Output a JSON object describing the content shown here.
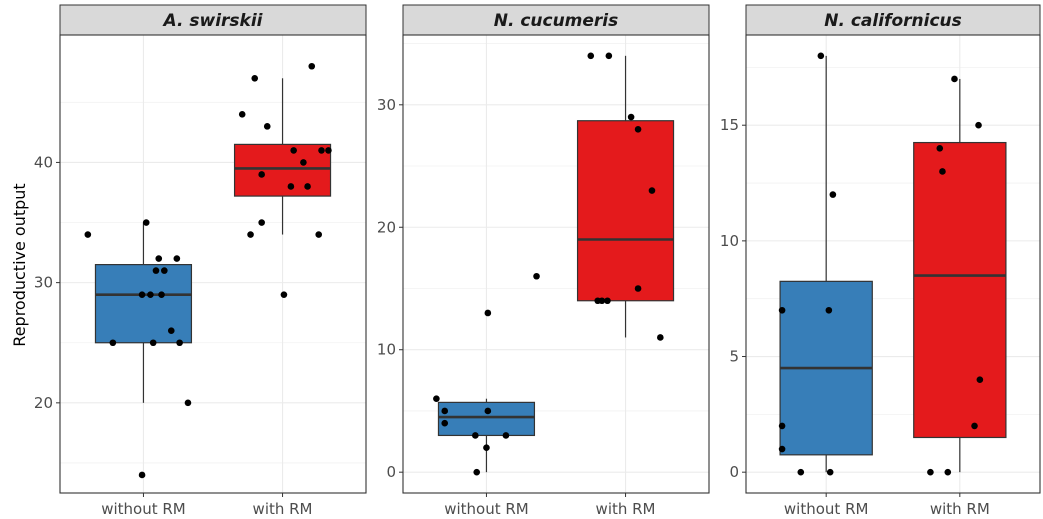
{
  "chart_data": {
    "type": "boxplot",
    "ylabel": "Reproductive output",
    "xlabel": "",
    "categories": [
      "without RM",
      "with RM"
    ],
    "colors": {
      "without RM": "#377eb8",
      "with RM": "#e41a1c"
    },
    "grid": true,
    "legend": "none",
    "panels": [
      {
        "title": "A. swirskii",
        "ylim": [
          12.5,
          50.6
        ],
        "yticks": [
          20,
          30,
          40
        ],
        "boxes": [
          {
            "group": "without RM",
            "min": 20,
            "q1": 25,
            "median": 29,
            "q3": 31.5,
            "max": 35
          },
          {
            "group": "with RM",
            "min": 34,
            "q1": 37.2,
            "median": 39.5,
            "q3": 41.5,
            "max": 47
          }
        ],
        "points": [
          {
            "group": "without RM",
            "x_offset": -0.4,
            "y": 34
          },
          {
            "group": "without RM",
            "x_offset": -0.22,
            "y": 25
          },
          {
            "group": "without RM",
            "x_offset": -0.01,
            "y": 14
          },
          {
            "group": "without RM",
            "x_offset": -0.01,
            "y": 29
          },
          {
            "group": "without RM",
            "x_offset": 0.02,
            "y": 35
          },
          {
            "group": "without RM",
            "x_offset": 0.05,
            "y": 29
          },
          {
            "group": "without RM",
            "x_offset": 0.07,
            "y": 25
          },
          {
            "group": "without RM",
            "x_offset": 0.09,
            "y": 31
          },
          {
            "group": "without RM",
            "x_offset": 0.11,
            "y": 32
          },
          {
            "group": "without RM",
            "x_offset": 0.13,
            "y": 29
          },
          {
            "group": "without RM",
            "x_offset": 0.15,
            "y": 31
          },
          {
            "group": "without RM",
            "x_offset": 0.2,
            "y": 26
          },
          {
            "group": "without RM",
            "x_offset": 0.24,
            "y": 32
          },
          {
            "group": "without RM",
            "x_offset": 0.26,
            "y": 25
          },
          {
            "group": "without RM",
            "x_offset": 0.32,
            "y": 20
          },
          {
            "group": "with RM",
            "x_offset": -0.29,
            "y": 44
          },
          {
            "group": "with RM",
            "x_offset": -0.23,
            "y": 34
          },
          {
            "group": "with RM",
            "x_offset": -0.2,
            "y": 47
          },
          {
            "group": "with RM",
            "x_offset": -0.15,
            "y": 39
          },
          {
            "group": "with RM",
            "x_offset": -0.15,
            "y": 35
          },
          {
            "group": "with RM",
            "x_offset": -0.11,
            "y": 43
          },
          {
            "group": "with RM",
            "x_offset": 0.01,
            "y": 29
          },
          {
            "group": "with RM",
            "x_offset": 0.06,
            "y": 38
          },
          {
            "group": "with RM",
            "x_offset": 0.08,
            "y": 41
          },
          {
            "group": "with RM",
            "x_offset": 0.15,
            "y": 40
          },
          {
            "group": "with RM",
            "x_offset": 0.18,
            "y": 38
          },
          {
            "group": "with RM",
            "x_offset": 0.21,
            "y": 48
          },
          {
            "group": "with RM",
            "x_offset": 0.26,
            "y": 34
          },
          {
            "group": "with RM",
            "x_offset": 0.28,
            "y": 41
          },
          {
            "group": "with RM",
            "x_offset": 0.33,
            "y": 41
          }
        ]
      },
      {
        "title": "N. cucumeris",
        "ylim": [
          -1.7,
          35.7
        ],
        "yticks": [
          0,
          10,
          20,
          30
        ],
        "boxes": [
          {
            "group": "without RM",
            "min": 0,
            "q1": 3,
            "median": 4.5,
            "q3": 5.7,
            "max": 6
          },
          {
            "group": "with RM",
            "min": 11,
            "q1": 14,
            "median": 19,
            "q3": 28.7,
            "max": 34
          }
        ],
        "points": [
          {
            "group": "without RM",
            "x_offset": -0.36,
            "y": 6
          },
          {
            "group": "without RM",
            "x_offset": -0.3,
            "y": 5
          },
          {
            "group": "without RM",
            "x_offset": -0.3,
            "y": 4
          },
          {
            "group": "without RM",
            "x_offset": -0.08,
            "y": 3
          },
          {
            "group": "without RM",
            "x_offset": -0.07,
            "y": 0
          },
          {
            "group": "without RM",
            "x_offset": 0.0,
            "y": 2
          },
          {
            "group": "without RM",
            "x_offset": 0.01,
            "y": 13
          },
          {
            "group": "without RM",
            "x_offset": 0.01,
            "y": 5
          },
          {
            "group": "without RM",
            "x_offset": 0.14,
            "y": 3
          },
          {
            "group": "without RM",
            "x_offset": 0.36,
            "y": 16
          },
          {
            "group": "with RM",
            "x_offset": -0.25,
            "y": 34
          },
          {
            "group": "with RM",
            "x_offset": -0.2,
            "y": 14
          },
          {
            "group": "with RM",
            "x_offset": -0.17,
            "y": 14
          },
          {
            "group": "with RM",
            "x_offset": -0.13,
            "y": 14
          },
          {
            "group": "with RM",
            "x_offset": -0.12,
            "y": 34
          },
          {
            "group": "with RM",
            "x_offset": 0.04,
            "y": 29
          },
          {
            "group": "with RM",
            "x_offset": 0.09,
            "y": 28
          },
          {
            "group": "with RM",
            "x_offset": 0.09,
            "y": 15
          },
          {
            "group": "with RM",
            "x_offset": 0.19,
            "y": 23
          },
          {
            "group": "with RM",
            "x_offset": 0.25,
            "y": 11
          }
        ]
      },
      {
        "title": "N. californicus",
        "ylim": [
          -0.9,
          18.9
        ],
        "yticks": [
          0,
          5,
          10,
          15
        ],
        "boxes": [
          {
            "group": "without RM",
            "min": 0,
            "q1": 0.75,
            "median": 4.5,
            "q3": 8.25,
            "max": 18
          },
          {
            "group": "with RM",
            "min": 0,
            "q1": 1.5,
            "median": 8.5,
            "q3": 14.25,
            "max": 17
          }
        ],
        "points": [
          {
            "group": "without RM",
            "x_offset": -0.33,
            "y": 7
          },
          {
            "group": "without RM",
            "x_offset": -0.33,
            "y": 2
          },
          {
            "group": "without RM",
            "x_offset": -0.33,
            "y": 1
          },
          {
            "group": "without RM",
            "x_offset": -0.19,
            "y": 0
          },
          {
            "group": "without RM",
            "x_offset": -0.04,
            "y": 18
          },
          {
            "group": "without RM",
            "x_offset": 0.02,
            "y": 7
          },
          {
            "group": "without RM",
            "x_offset": 0.03,
            "y": 0
          },
          {
            "group": "without RM",
            "x_offset": 0.05,
            "y": 12
          },
          {
            "group": "with RM",
            "x_offset": -0.22,
            "y": 0
          },
          {
            "group": "with RM",
            "x_offset": -0.15,
            "y": 14
          },
          {
            "group": "with RM",
            "x_offset": -0.13,
            "y": 13
          },
          {
            "group": "with RM",
            "x_offset": -0.09,
            "y": 0
          },
          {
            "group": "with RM",
            "x_offset": -0.04,
            "y": 17
          },
          {
            "group": "with RM",
            "x_offset": 0.11,
            "y": 2
          },
          {
            "group": "with RM",
            "x_offset": 0.14,
            "y": 15
          },
          {
            "group": "with RM",
            "x_offset": 0.15,
            "y": 4
          }
        ]
      }
    ]
  }
}
